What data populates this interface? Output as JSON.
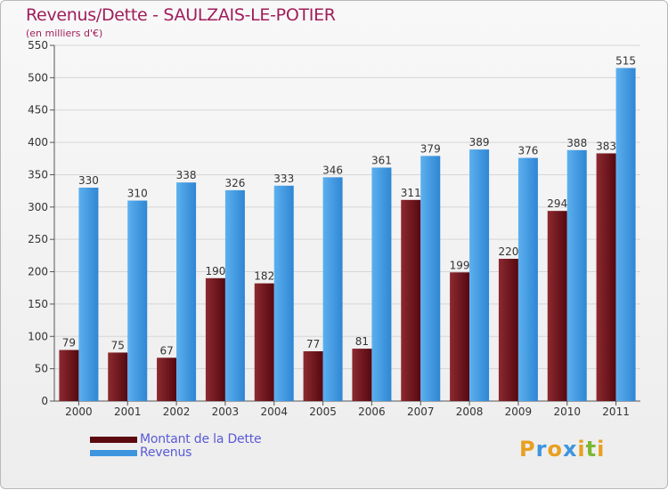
{
  "title": "Revenus/Dette - SAULZAIS-LE-POTIER",
  "subtitle": "(en milliers d'€)",
  "colors": {
    "dette": "#7a1a1f",
    "revenus": "#4aa3e8",
    "title": "#a01e5a",
    "legend_text": "#5a5ad6"
  },
  "legend": [
    {
      "label": "Montant de la Dette",
      "color": "#5c0a10"
    },
    {
      "label": "Revenus",
      "color": "#3d95e0"
    }
  ],
  "logo": {
    "text": "Proxiti",
    "letters": [
      "P",
      "r",
      "o",
      "x",
      "i",
      "t",
      "i"
    ],
    "colors": [
      "#e8a020",
      "#3d95e0",
      "#e8a020",
      "#3d95e0",
      "#e8a020",
      "#7cb82f",
      "#e8a020"
    ]
  },
  "chart_data": {
    "type": "bar",
    "title": "Revenus/Dette - SAULZAIS-LE-POTIER",
    "ylabel": "(en milliers d'€)",
    "xlabel": "",
    "ylim": [
      0,
      550
    ],
    "yticks": [
      0,
      50,
      100,
      150,
      200,
      250,
      300,
      350,
      400,
      450,
      500,
      550
    ],
    "grid": true,
    "categories": [
      "2000",
      "2001",
      "2002",
      "2003",
      "2004",
      "2005",
      "2006",
      "2007",
      "2008",
      "2009",
      "2010",
      "2011"
    ],
    "series": [
      {
        "name": "Montant de la Dette",
        "values": [
          79,
          75,
          67,
          190,
          182,
          77,
          81,
          311,
          199,
          220,
          294,
          383
        ]
      },
      {
        "name": "Revenus",
        "values": [
          330,
          310,
          338,
          326,
          333,
          346,
          361,
          379,
          389,
          376,
          388,
          515
        ]
      }
    ]
  }
}
